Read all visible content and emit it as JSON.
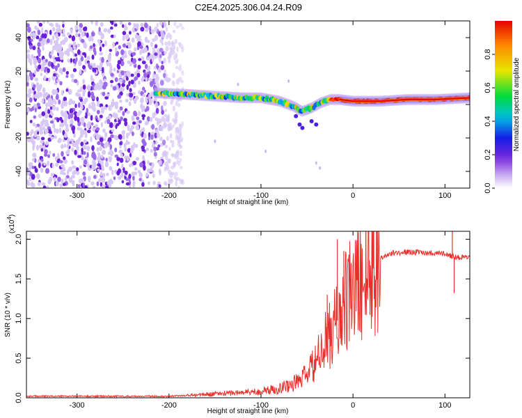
{
  "title": "C2E4.2025.306.04.24.R09",
  "chart_data": [
    {
      "type": "heatmap",
      "name": "spectrogram",
      "xlabel": "Height of straight line (km)",
      "ylabel": "Frequency (Hz)",
      "xlim": [
        -355,
        127
      ],
      "ylim": [
        -50,
        50
      ],
      "xticks": [
        -300,
        -200,
        -100,
        0,
        100
      ],
      "yticks": [
        -40,
        -20,
        0,
        20,
        40
      ],
      "noise_region_x": [
        -355,
        -185
      ],
      "ridge": {
        "x": [
          -215,
          -180,
          -150,
          -120,
          -100,
          -80,
          -65,
          -55,
          -45,
          -35,
          -25,
          -15,
          0,
          30,
          60,
          90,
          127
        ],
        "y": [
          7,
          6,
          5,
          4,
          4,
          2,
          -1,
          -4,
          -2,
          1,
          3,
          3,
          2,
          2,
          3,
          3,
          4
        ]
      },
      "colorbar": {
        "label": "Normalized spectral amplitude",
        "range": [
          0,
          1
        ],
        "ticks": [
          "0.0",
          "0.2",
          "0.4",
          "0.6",
          "0.8"
        ],
        "tick_values": [
          0,
          0.2,
          0.4,
          0.6,
          0.8
        ]
      }
    },
    {
      "type": "line",
      "name": "snr",
      "xlabel": "Height of straight line (km)",
      "ylabel": "SNR (10 * v/v)",
      "multiplier": "(x10",
      "multiplier_exp": "4",
      "multiplier_close": ")",
      "xlim": [
        -355,
        127
      ],
      "ylim": [
        0,
        2.1
      ],
      "xticks": [
        -300,
        -200,
        -100,
        0,
        100
      ],
      "yticks": [
        "0.0",
        "0.5",
        "1.0",
        "1.5",
        "2.0"
      ],
      "ytick_values": [
        0,
        0.5,
        1.0,
        1.5,
        2.0
      ],
      "color": "#e8302a",
      "envelope": {
        "x": [
          -355,
          -250,
          -200,
          -180,
          -150,
          -100,
          -80,
          -60,
          -50,
          -40,
          -30,
          -20,
          -10,
          0,
          20,
          40,
          60,
          80,
          100,
          110,
          127
        ],
        "y": [
          0.02,
          0.02,
          0.02,
          0.03,
          0.05,
          0.08,
          0.12,
          0.2,
          0.3,
          0.45,
          0.7,
          0.9,
          1.15,
          1.35,
          1.7,
          1.82,
          1.84,
          1.83,
          1.82,
          1.78,
          1.76
        ]
      },
      "spikes": [
        {
          "x": -17,
          "y": 2.0
        },
        {
          "x": -10,
          "y": 1.85
        },
        {
          "x": -28,
          "y": 1.3
        },
        {
          "x": 108,
          "y": 2.1
        },
        {
          "x": 110,
          "y": 1.32
        }
      ]
    }
  ]
}
